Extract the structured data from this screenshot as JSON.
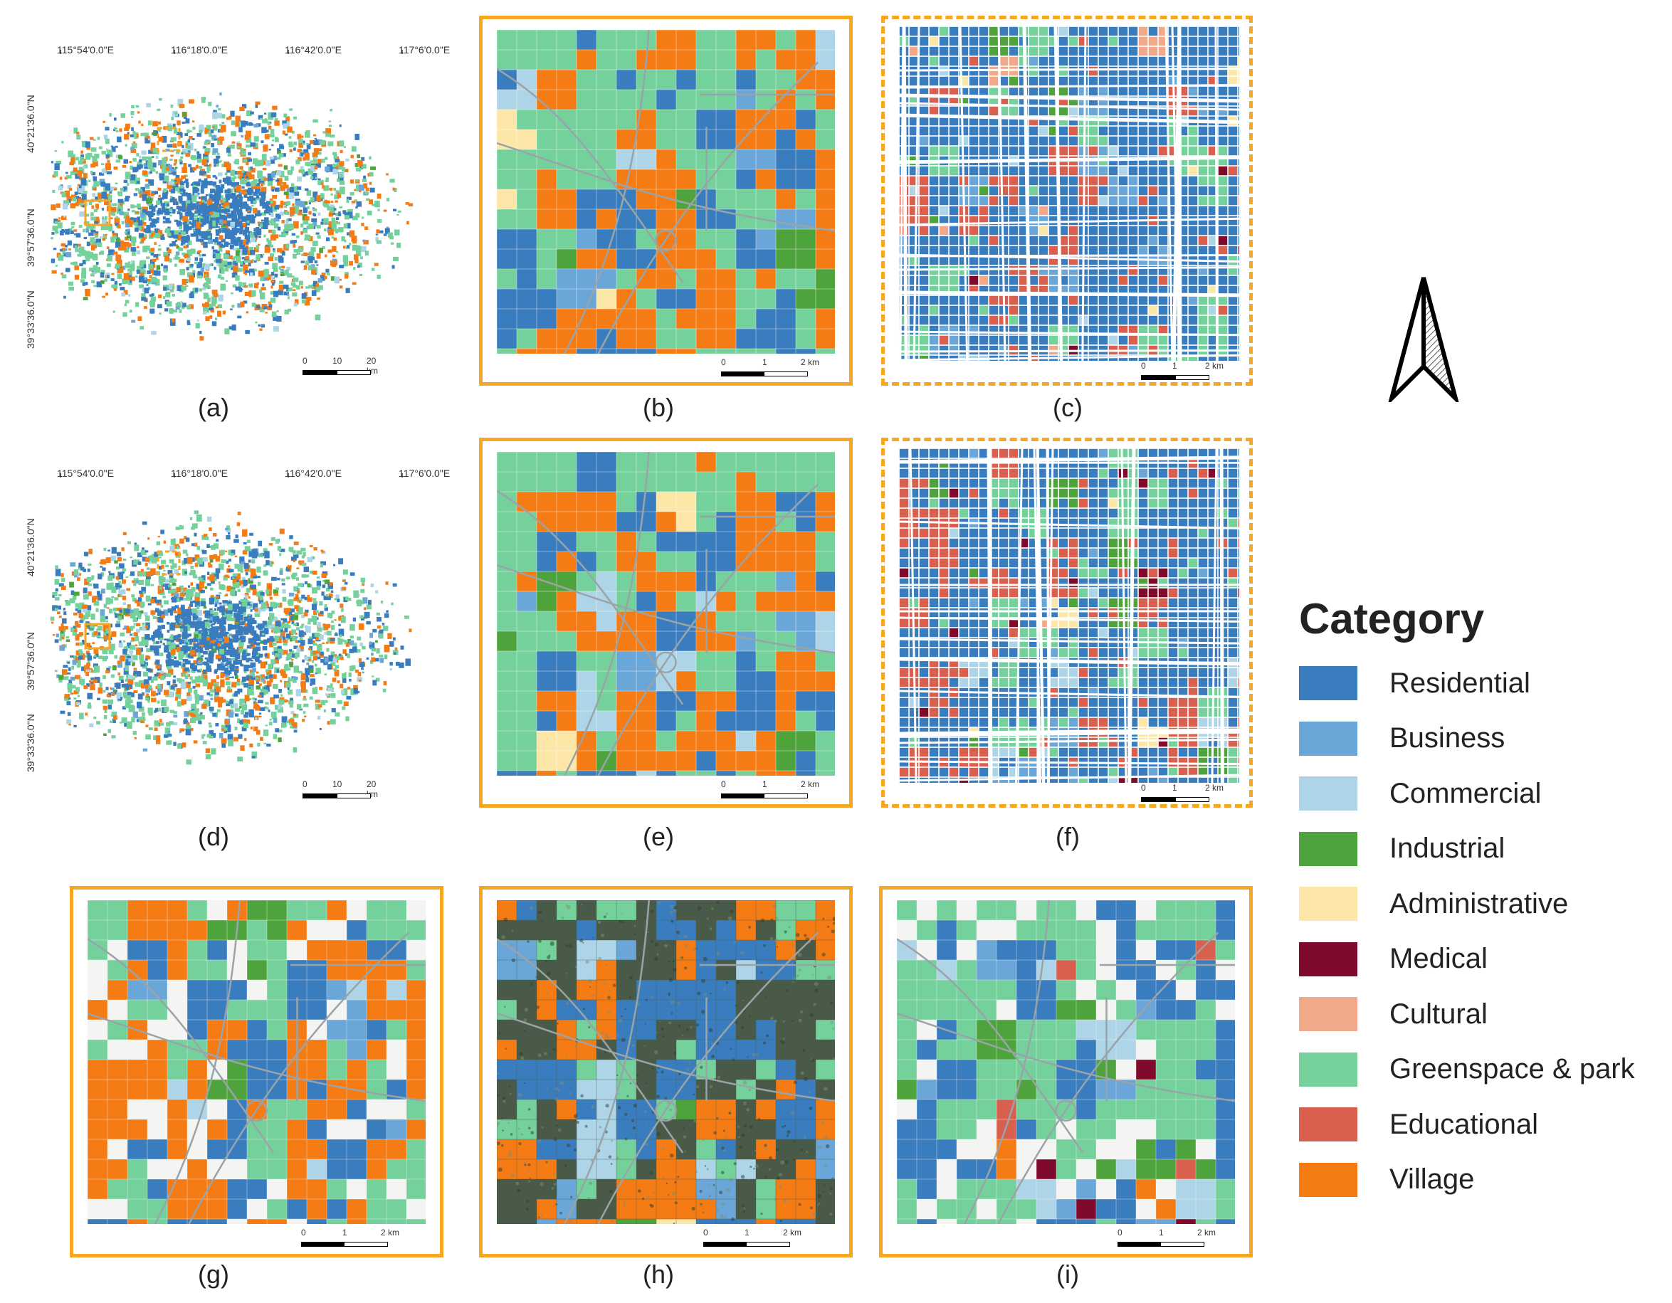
{
  "categories": [
    {
      "name": "Residential",
      "color": "#3A7DBF"
    },
    {
      "name": "Business",
      "color": "#6AA7D8"
    },
    {
      "name": "Commercial",
      "color": "#AED4E8"
    },
    {
      "name": "Industrial",
      "color": "#4FA33D"
    },
    {
      "name": "Administrative",
      "color": "#FCE7A8"
    },
    {
      "name": "Medical",
      "color": "#7F0A2B"
    },
    {
      "name": "Cultural",
      "color": "#F2A98A"
    },
    {
      "name": "Greenspace & park",
      "color": "#74D19C"
    },
    {
      "name": "Educational",
      "color": "#D9604F"
    },
    {
      "name": "Village",
      "color": "#F57C14"
    }
  ],
  "legend": {
    "title": "Category"
  },
  "overview": {
    "lon_labels": [
      "115°54'0.0\"E",
      "116°18'0.0\"E",
      "116°42'0.0\"E",
      "117°6'0.0\"E"
    ],
    "lat_labels": [
      "40°21'36.0\"N",
      "39°57'36.0\"N",
      "39°33'36.0\"N"
    ],
    "scale": {
      "labels": [
        "0",
        "10",
        "20 km"
      ]
    }
  },
  "zoom_scale": {
    "labels": [
      "0",
      "1",
      "2 km"
    ]
  },
  "panels": [
    {
      "caption": "(a)"
    },
    {
      "caption": "(b)"
    },
    {
      "caption": "(c)"
    },
    {
      "caption": "(d)"
    },
    {
      "caption": "(e)"
    },
    {
      "caption": "(f)"
    },
    {
      "caption": "(g)"
    },
    {
      "caption": "(h)"
    },
    {
      "caption": "(i)"
    }
  ],
  "accent_color": "#F5A623"
}
